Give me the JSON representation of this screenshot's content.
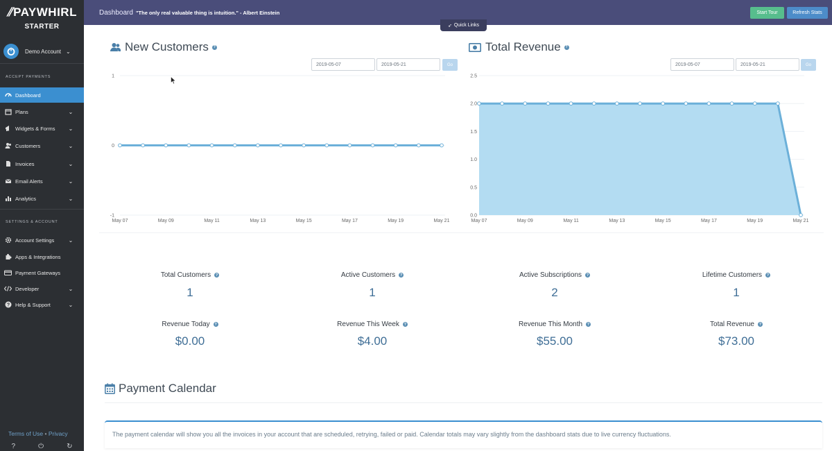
{
  "app": {
    "brand": "PAYWHIRL",
    "plan": "STARTER"
  },
  "account": {
    "name": "Demo Account"
  },
  "sidebar": {
    "sections": [
      {
        "label": "ACCEPT PAYMENTS"
      },
      {
        "label": "SETTINGS & ACCOUNT"
      }
    ],
    "items": [
      {
        "label": "Dashboard",
        "icon": "dashboard-icon",
        "active": true,
        "has_caret": false
      },
      {
        "label": "Plans",
        "icon": "calendar-icon",
        "active": false,
        "has_caret": true
      },
      {
        "label": "Widgets & Forms",
        "icon": "bullhorn-icon",
        "active": false,
        "has_caret": true
      },
      {
        "label": "Customers",
        "icon": "users-icon",
        "active": false,
        "has_caret": true
      },
      {
        "label": "Invoices",
        "icon": "file-icon",
        "active": false,
        "has_caret": true
      },
      {
        "label": "Email Alerts",
        "icon": "envelope-icon",
        "active": false,
        "has_caret": true
      },
      {
        "label": "Analytics",
        "icon": "bar-chart-icon",
        "active": false,
        "has_caret": true
      },
      {
        "label": "Account Settings",
        "icon": "gear-icon",
        "active": false,
        "has_caret": true
      },
      {
        "label": "Apps & Integrations",
        "icon": "puzzle-icon",
        "active": false,
        "has_caret": false
      },
      {
        "label": "Payment Gateways",
        "icon": "credit-card-icon",
        "active": false,
        "has_caret": false
      },
      {
        "label": "Developer",
        "icon": "code-icon",
        "active": false,
        "has_caret": true
      },
      {
        "label": "Help & Support",
        "icon": "question-icon",
        "active": false,
        "has_caret": true
      }
    ],
    "footer": {
      "terms": "Terms of Use",
      "separator": "•",
      "privacy": "Privacy"
    }
  },
  "topbar": {
    "title": "Dashboard",
    "quote": "\"The only real valuable thing is intuition.\" - Albert Einstein",
    "start_tour": "Start Tour",
    "refresh_stats": "Refresh Stats",
    "quick_links": "Quick Links"
  },
  "new_customers": {
    "title": "New Customers",
    "date_from": "2019-05-07",
    "date_to": "2019-05-21",
    "go_label": "Go"
  },
  "total_revenue": {
    "title": "Total Revenue",
    "date_from": "2019-05-07",
    "date_to": "2019-05-21",
    "go_label": "Go"
  },
  "stats": {
    "row1": [
      {
        "label": "Total Customers",
        "value": "1"
      },
      {
        "label": "Active Customers",
        "value": "1"
      },
      {
        "label": "Active Subscriptions",
        "value": "2"
      },
      {
        "label": "Lifetime Customers",
        "value": "1"
      }
    ],
    "row2": [
      {
        "label": "Revenue Today",
        "value": "$0.00"
      },
      {
        "label": "Revenue This Week",
        "value": "$4.00"
      },
      {
        "label": "Revenue This Month",
        "value": "$55.00"
      },
      {
        "label": "Total Revenue",
        "value": "$73.00"
      }
    ]
  },
  "calendar": {
    "title": "Payment Calendar",
    "info": "The payment calendar will show you all the invoices in your account that are scheduled, retrying, failed or paid. Calendar totals may vary slightly from the dashboard stats due to live currency fluctuations."
  },
  "colors": {
    "sidebar_bg": "#2c2f33",
    "active_blue": "#3b8fd0",
    "topbar_bg": "#4a4d7a",
    "start_tour_green": "#57bd8d",
    "line_blue": "#6cb0d9",
    "area_fill": "#b3dcf2",
    "stat_value": "#3f6e96"
  },
  "chart_data": [
    {
      "type": "line",
      "x": [
        "May 07",
        "May 08",
        "May 09",
        "May 10",
        "May 11",
        "May 12",
        "May 13",
        "May 14",
        "May 15",
        "May 16",
        "May 17",
        "May 18",
        "May 19",
        "May 20",
        "May 21"
      ],
      "x_tick_labels": [
        "May 07",
        "May 09",
        "May 11",
        "May 13",
        "May 15",
        "May 17",
        "May 19",
        "May 21"
      ],
      "y_tick_labels": [
        "1",
        "0",
        "-1"
      ],
      "series": [
        {
          "values": [
            0,
            0,
            0,
            0,
            0,
            0,
            0,
            0,
            0,
            0,
            0,
            0,
            0,
            0,
            0
          ]
        }
      ],
      "ylim": [
        -1,
        1
      ],
      "grid": true
    },
    {
      "type": "area",
      "x": [
        "May 07",
        "May 08",
        "May 09",
        "May 10",
        "May 11",
        "May 12",
        "May 13",
        "May 14",
        "May 15",
        "May 16",
        "May 17",
        "May 18",
        "May 19",
        "May 20",
        "May 21"
      ],
      "x_tick_labels": [
        "May 07",
        "May 09",
        "May 11",
        "May 13",
        "May 15",
        "May 17",
        "May 19",
        "May 21"
      ],
      "y_tick_labels": [
        "2.5",
        "2.0",
        "1.5",
        "1.0",
        "0.5",
        "0.0"
      ],
      "series": [
        {
          "values": [
            2,
            2,
            2,
            2,
            2,
            2,
            2,
            2,
            2,
            2,
            2,
            2,
            2,
            2,
            0
          ]
        }
      ],
      "ylim": [
        0,
        2.5
      ],
      "grid": true
    }
  ]
}
